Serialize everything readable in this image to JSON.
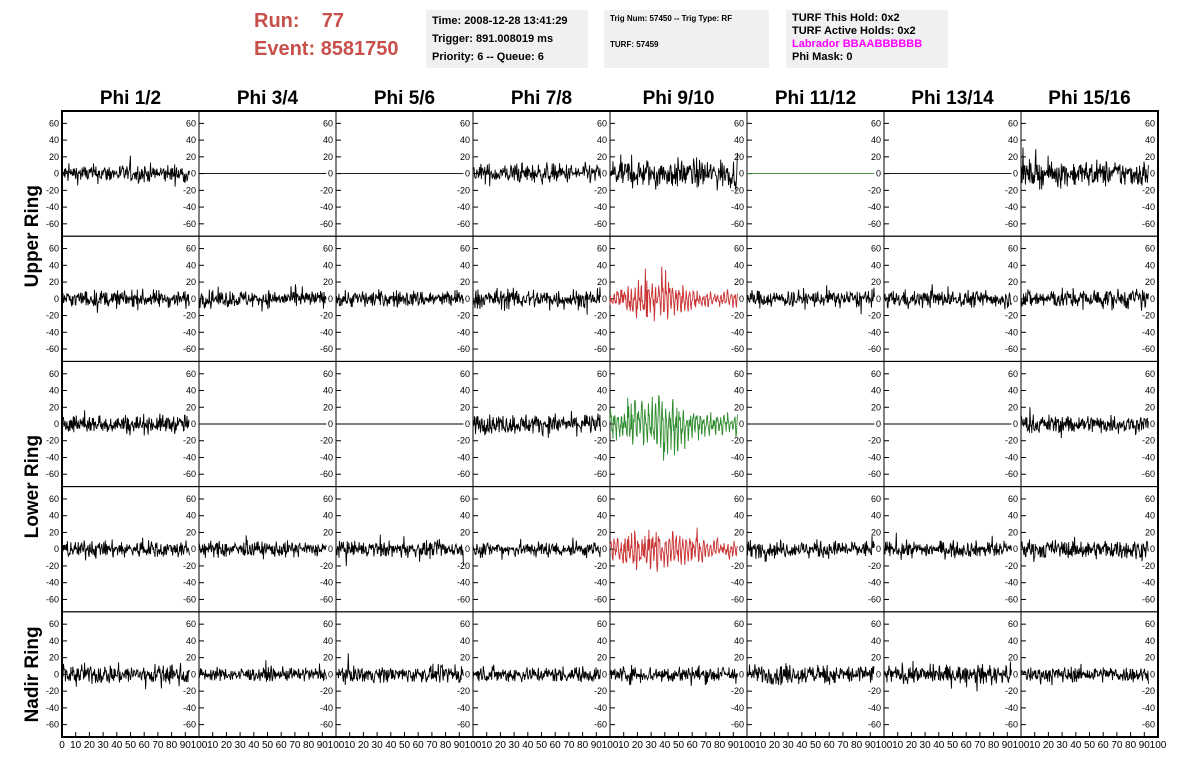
{
  "header": {
    "run_label": "Run:",
    "run_value": "77",
    "event_label": "Event:",
    "event_value": "8581750",
    "time": "Time: 2008-12-28 13:41:29",
    "trigger": "Trigger: 891.008019 ms",
    "priority": "Priority: 6 -- Queue: 6",
    "trig_num": "Trig Num: 57450 -- Trig Type: RF",
    "turf": "TURF: 57459",
    "turf_this_hold": "TURF This Hold: 0x2",
    "turf_active_holds": "TURF Active Holds: 0x2",
    "labrador": "Labrador BBAABBBBBB",
    "phi_mask": "Phi Mask: 0",
    "labrador_color": "#ff00ff",
    "run_color": "#c8504a"
  },
  "chart_data": {
    "type": "line",
    "columns": [
      "Phi 1/2",
      "Phi 3/4",
      "Phi 5/6",
      "Phi 7/8",
      "Phi 9/10",
      "Phi 11/12",
      "Phi 13/14",
      "Phi 15/16"
    ],
    "ring_labels": [
      "Upper Ring",
      "Lower Ring",
      "Nadir Ring"
    ],
    "yticks": [
      60,
      40,
      20,
      0,
      -20,
      -40,
      -60
    ],
    "xticks": [
      0,
      10,
      20,
      30,
      40,
      50,
      60,
      70,
      80,
      90,
      100
    ],
    "ylim": [
      -70,
      70
    ],
    "xlim": [
      0,
      100
    ],
    "rows": [
      {
        "panels": [
          {
            "amp": 14,
            "color": "#000000",
            "flat": false
          },
          {
            "amp": 0,
            "color": "#000000",
            "flat": true
          },
          {
            "amp": 0,
            "color": "#000000",
            "flat": true
          },
          {
            "amp": 15,
            "color": "#000000",
            "flat": false
          },
          {
            "amp": 22,
            "color": "#000000",
            "flat": false
          },
          {
            "amp": 0,
            "color": "#2e8b2e",
            "flat": true
          },
          {
            "amp": 0,
            "color": "#000000",
            "flat": true
          },
          {
            "amp": 20,
            "color": "#000000",
            "flat": false
          }
        ]
      },
      {
        "panels": [
          {
            "amp": 13,
            "color": "#000000",
            "flat": false
          },
          {
            "amp": 13,
            "color": "#000000",
            "flat": false
          },
          {
            "amp": 13,
            "color": "#000000",
            "flat": false
          },
          {
            "amp": 15,
            "color": "#000000",
            "flat": false
          },
          {
            "amp": 17,
            "color": "#c83232",
            "flat": false
          },
          {
            "amp": 13,
            "color": "#000000",
            "flat": false
          },
          {
            "amp": 13,
            "color": "#000000",
            "flat": false
          },
          {
            "amp": 15,
            "color": "#000000",
            "flat": false
          }
        ]
      },
      {
        "panels": [
          {
            "amp": 14,
            "color": "#000000",
            "flat": false
          },
          {
            "amp": 0,
            "color": "#000000",
            "flat": true
          },
          {
            "amp": 0,
            "color": "#000000",
            "flat": true
          },
          {
            "amp": 15,
            "color": "#000000",
            "flat": false
          },
          {
            "amp": 25,
            "color": "#2e8b2e",
            "flat": false
          },
          {
            "amp": 0,
            "color": "#000000",
            "flat": true
          },
          {
            "amp": 0,
            "color": "#000000",
            "flat": true
          },
          {
            "amp": 14,
            "color": "#000000",
            "flat": false
          }
        ]
      },
      {
        "panels": [
          {
            "amp": 13,
            "color": "#000000",
            "flat": false
          },
          {
            "amp": 12,
            "color": "#000000",
            "flat": false
          },
          {
            "amp": 12,
            "color": "#000000",
            "flat": false
          },
          {
            "amp": 12,
            "color": "#000000",
            "flat": false
          },
          {
            "amp": 18,
            "color": "#c83232",
            "flat": false
          },
          {
            "amp": 13,
            "color": "#000000",
            "flat": false
          },
          {
            "amp": 12,
            "color": "#000000",
            "flat": false
          },
          {
            "amp": 14,
            "color": "#000000",
            "flat": false
          }
        ]
      },
      {
        "panels": [
          {
            "amp": 15,
            "color": "#000000",
            "flat": false
          },
          {
            "amp": 10,
            "color": "#000000",
            "flat": false
          },
          {
            "amp": 12,
            "color": "#000000",
            "flat": false
          },
          {
            "amp": 12,
            "color": "#000000",
            "flat": false
          },
          {
            "amp": 13,
            "color": "#000000",
            "flat": false
          },
          {
            "amp": 15,
            "color": "#000000",
            "flat": false
          },
          {
            "amp": 14,
            "color": "#000000",
            "flat": false
          },
          {
            "amp": 12,
            "color": "#000000",
            "flat": false
          }
        ]
      }
    ]
  }
}
